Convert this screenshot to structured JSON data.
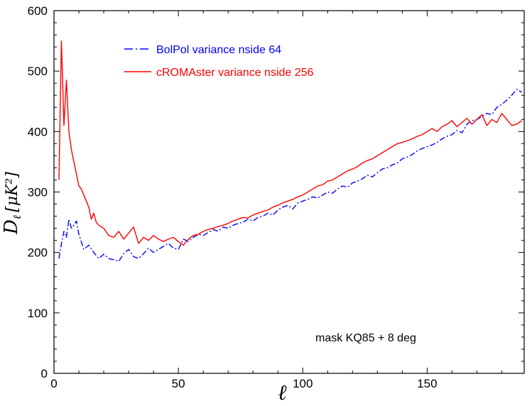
{
  "chart_data": {
    "type": "line",
    "title": "",
    "xlabel": "ℓ",
    "ylabel_main": "D",
    "ylabel_sub": "ℓ",
    "ylabel_units": "[μK²]",
    "xlim": [
      0,
      189
    ],
    "ylim": [
      0,
      600
    ],
    "xticks": [
      0,
      50,
      100,
      150
    ],
    "yticks": [
      0,
      100,
      200,
      300,
      400,
      500,
      600
    ],
    "grid": false,
    "legend_position": "top-left",
    "annotation": "mask KQ85 + 8 deg",
    "series": [
      {
        "name": "BolPol variance nside 64",
        "color": "#0000ff",
        "style": "dashdot",
        "x": [
          2,
          3,
          4,
          5,
          6,
          7,
          8,
          9,
          10,
          12,
          14,
          16,
          18,
          20,
          22,
          24,
          26,
          28,
          30,
          32,
          34,
          36,
          38,
          40,
          42,
          44,
          46,
          48,
          50,
          52,
          54,
          56,
          58,
          60,
          62,
          64,
          66,
          68,
          70,
          72,
          74,
          76,
          78,
          80,
          82,
          84,
          86,
          88,
          90,
          92,
          94,
          96,
          98,
          100,
          102,
          104,
          106,
          108,
          110,
          112,
          114,
          116,
          118,
          120,
          122,
          124,
          126,
          128,
          130,
          132,
          134,
          136,
          138,
          140,
          142,
          144,
          146,
          148,
          150,
          152,
          154,
          156,
          158,
          160,
          162,
          164,
          166,
          168,
          170,
          172,
          174,
          176,
          178,
          180,
          182,
          184,
          186,
          188
        ],
        "values": [
          190,
          215,
          235,
          225,
          255,
          240,
          245,
          252,
          230,
          205,
          212,
          200,
          190,
          197,
          190,
          188,
          185,
          198,
          205,
          193,
          190,
          198,
          207,
          200,
          205,
          210,
          215,
          207,
          205,
          222,
          218,
          225,
          230,
          228,
          233,
          238,
          235,
          242,
          240,
          245,
          248,
          250,
          255,
          252,
          258,
          260,
          265,
          262,
          270,
          275,
          278,
          272,
          282,
          285,
          288,
          292,
          290,
          295,
          300,
          298,
          305,
          310,
          308,
          315,
          318,
          322,
          328,
          325,
          332,
          338,
          340,
          345,
          348,
          355,
          358,
          362,
          368,
          372,
          375,
          378,
          382,
          388,
          392,
          395,
          402,
          398,
          412,
          418,
          420,
          425,
          430,
          428,
          440,
          445,
          452,
          460,
          470,
          465
        ]
      },
      {
        "name": "cROMAster variance nside 256",
        "color": "#ff0000",
        "style": "solid",
        "x": [
          2,
          3,
          4,
          5,
          6,
          7,
          8,
          9,
          10,
          11,
          12,
          13,
          14,
          15,
          16,
          17,
          18,
          20,
          22,
          24,
          26,
          28,
          30,
          32,
          34,
          36,
          38,
          40,
          42,
          44,
          46,
          48,
          50,
          52,
          54,
          56,
          58,
          60,
          62,
          64,
          66,
          68,
          70,
          72,
          74,
          76,
          78,
          80,
          82,
          84,
          86,
          88,
          90,
          92,
          94,
          96,
          98,
          100,
          102,
          104,
          106,
          108,
          110,
          112,
          114,
          116,
          118,
          120,
          122,
          124,
          126,
          128,
          130,
          132,
          134,
          136,
          138,
          140,
          142,
          144,
          146,
          148,
          150,
          152,
          154,
          156,
          158,
          160,
          162,
          164,
          166,
          168,
          170,
          172,
          174,
          176,
          178,
          180,
          182,
          184,
          186,
          188
        ],
        "values": [
          320,
          550,
          410,
          485,
          400,
          370,
          350,
          330,
          310,
          305,
          295,
          285,
          275,
          255,
          265,
          250,
          245,
          240,
          228,
          225,
          235,
          222,
          232,
          242,
          215,
          225,
          220,
          228,
          222,
          218,
          222,
          225,
          218,
          212,
          222,
          228,
          230,
          235,
          238,
          240,
          243,
          245,
          248,
          252,
          255,
          258,
          257,
          262,
          265,
          268,
          270,
          275,
          278,
          282,
          285,
          288,
          292,
          295,
          300,
          305,
          310,
          312,
          318,
          320,
          325,
          330,
          335,
          338,
          342,
          348,
          352,
          355,
          360,
          365,
          370,
          375,
          380,
          382,
          385,
          388,
          392,
          395,
          400,
          405,
          400,
          408,
          412,
          418,
          408,
          415,
          422,
          412,
          420,
          428,
          410,
          420,
          415,
          430,
          420,
          410,
          412,
          418
        ]
      }
    ]
  }
}
